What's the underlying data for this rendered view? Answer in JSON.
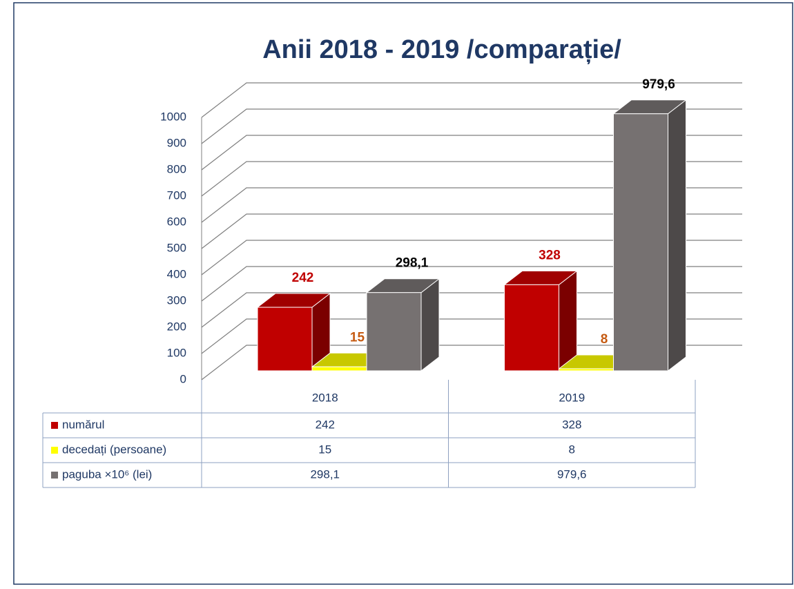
{
  "chart_data": {
    "type": "bar3d",
    "title": "Anii 2018 - 2019 /comparație/",
    "categories": [
      "2018",
      "2019"
    ],
    "series": [
      {
        "name": "numărul",
        "color": "#c00000",
        "values": [
          242,
          328
        ]
      },
      {
        "name": "decedați (persoane)",
        "color": "#ffff00",
        "values": [
          15,
          8
        ]
      },
      {
        "name": "paguba ×10⁶ (lei)",
        "color": "#767171",
        "values": [
          298.1,
          979.6
        ],
        "value_labels": [
          "298,1",
          "979,6"
        ]
      }
    ],
    "label_colors": [
      "#c00000",
      "#c55a11",
      "#000000"
    ],
    "ylim": [
      0,
      1000
    ],
    "yticks": [
      0,
      100,
      200,
      300,
      400,
      500,
      600,
      700,
      800,
      900,
      1000
    ],
    "grid": true
  }
}
